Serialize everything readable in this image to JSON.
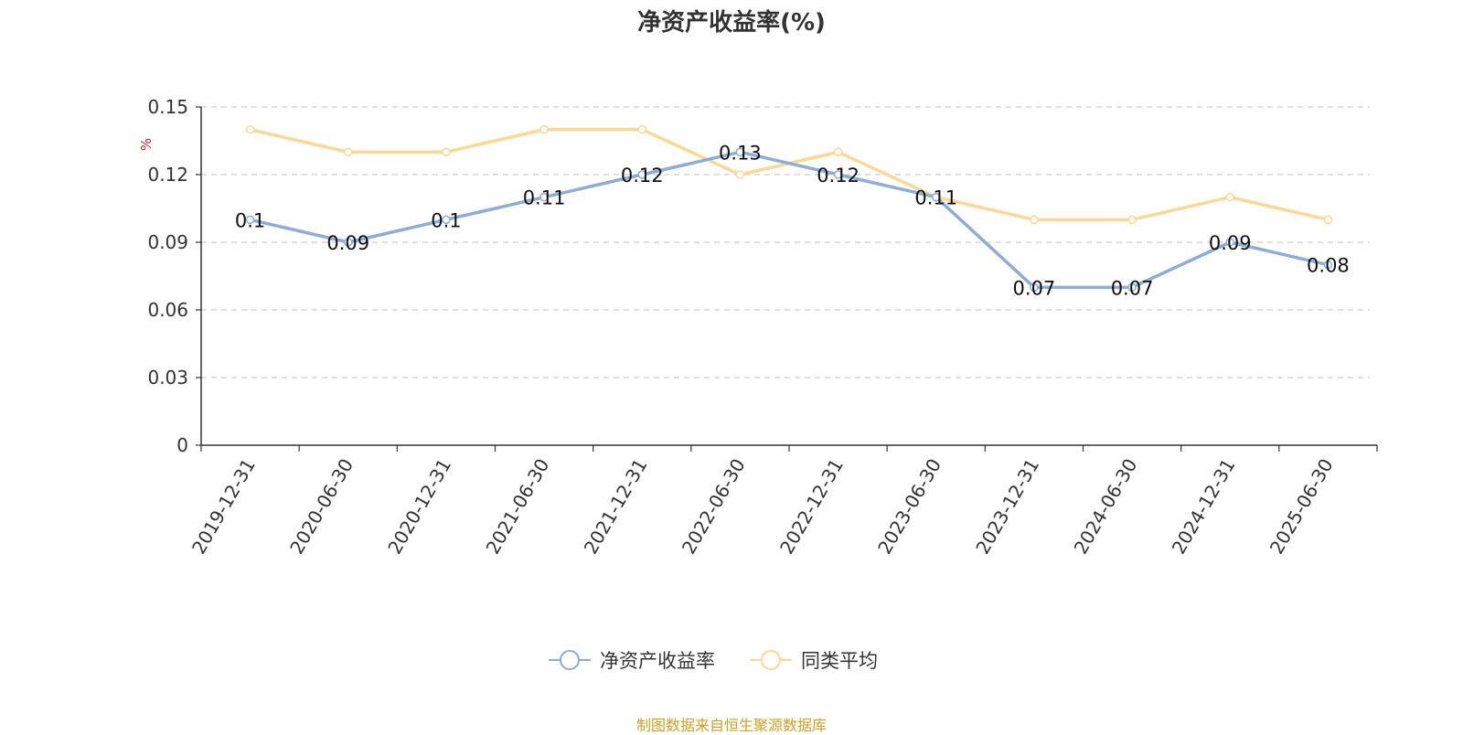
{
  "chart_data": {
    "type": "line",
    "title": "净资产收益率(%)",
    "ylabel": "%",
    "ylim": [
      0,
      0.15
    ],
    "yticks": [
      "0",
      "0.03",
      "0.06",
      "0.09",
      "0.12",
      "0.15"
    ],
    "yticks_values": [
      0,
      0.03,
      0.06,
      0.09,
      0.12,
      0.15
    ],
    "categories": [
      "2019-12-31",
      "2020-06-30",
      "2020-12-31",
      "2021-06-30",
      "2021-12-31",
      "2022-06-30",
      "2022-12-31",
      "2023-06-30",
      "2023-12-31",
      "2024-06-30",
      "2024-12-31",
      "2025-06-30"
    ],
    "series": [
      {
        "name": "净资产收益率",
        "color": "#8eacd6",
        "labels": true,
        "values": [
          0.1,
          0.09,
          0.1,
          0.11,
          0.12,
          0.13,
          0.12,
          0.11,
          0.07,
          0.07,
          0.09,
          0.08
        ]
      },
      {
        "name": "同类平均",
        "color": "#fbd995",
        "labels": false,
        "values": [
          0.14,
          0.13,
          0.13,
          0.14,
          0.14,
          0.12,
          0.13,
          0.11,
          0.1,
          0.1,
          0.11,
          0.1
        ]
      }
    ],
    "grid": true,
    "legend_position": "bottom"
  },
  "footer": {
    "source": "制图数据来自恒生聚源数据库"
  }
}
